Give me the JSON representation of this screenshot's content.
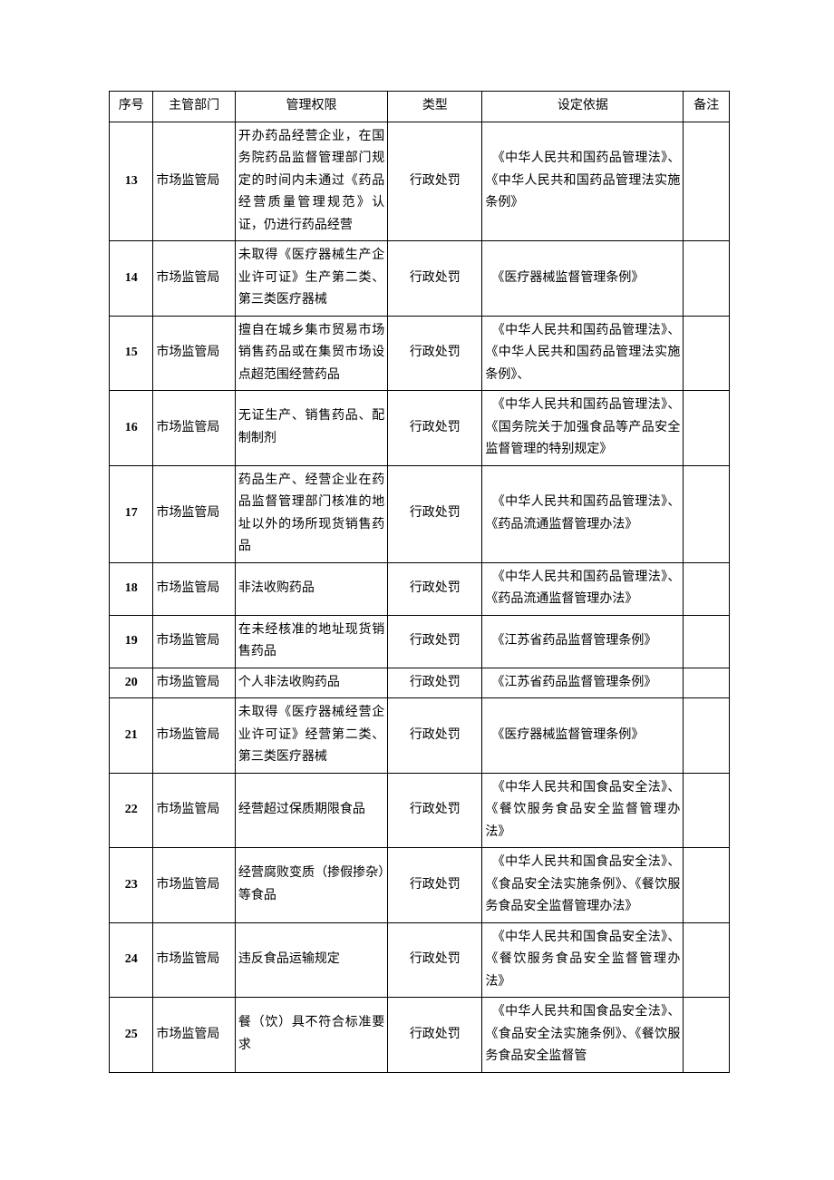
{
  "table": {
    "headers": {
      "seq": "序号",
      "dept": "主管部门",
      "auth": "管理权限",
      "type": "类型",
      "basis": "设定依据",
      "remark": "备注"
    },
    "rows": [
      {
        "seq": "13",
        "dept": "市场监管局",
        "auth": "开办药品经营企业，在国务院药品监督管理部门规定的时间内未通过《药品经营质量管理规范》认证，仍进行药品经营",
        "type": "行政处罚",
        "basis": "　《中华人民共和国药品管理法》、《中华人民共和国药品管理法实施条例》",
        "remark": ""
      },
      {
        "seq": "14",
        "dept": "市场监管局",
        "auth": "未取得《医疗器械生产企业许可证》生产第二类、第三类医疗器械",
        "type": "行政处罚",
        "basis": "　《医疗器械监督管理条例》",
        "remark": ""
      },
      {
        "seq": "15",
        "dept": "市场监管局",
        "auth": "擅自在城乡集市贸易市场销售药品或在集贸市场设点超范围经营药品",
        "type": "行政处罚",
        "basis": "　《中华人民共和国药品管理法》、《中华人民共和国药品管理法实施条例》、",
        "remark": ""
      },
      {
        "seq": "16",
        "dept": "市场监管局",
        "auth": "无证生产、销售药品、配制制剂",
        "type": "行政处罚",
        "basis": "　《中华人民共和国药品管理法》、《国务院关于加强食品等产品安全监督管理的特别规定》",
        "remark": ""
      },
      {
        "seq": "17",
        "dept": "市场监管局",
        "auth": "药品生产、经营企业在药品监督管理部门核准的地址以外的场所现货销售药品",
        "type": "行政处罚",
        "basis": "　《中华人民共和国药品管理法》、《药品流通监督管理办法》",
        "remark": ""
      },
      {
        "seq": "18",
        "dept": "市场监管局",
        "auth": "非法收购药品",
        "type": "行政处罚",
        "basis": "　《中华人民共和国药品管理法》、《药品流通监督管理办法》",
        "remark": ""
      },
      {
        "seq": "19",
        "dept": "市场监管局",
        "auth": "在未经核准的地址现货销售药品",
        "type": "行政处罚",
        "basis": "　《江苏省药品监督管理条例》",
        "remark": ""
      },
      {
        "seq": "20",
        "dept": "市场监管局",
        "auth": "个人非法收购药品",
        "type": "行政处罚",
        "basis": "　《江苏省药品监督管理条例》",
        "remark": ""
      },
      {
        "seq": "21",
        "dept": "市场监管局",
        "auth": "未取得《医疗器械经营企业许可证》经营第二类、第三类医疗器械",
        "type": "行政处罚",
        "basis": "　《医疗器械监督管理条例》",
        "remark": ""
      },
      {
        "seq": "22",
        "dept": "市场监管局",
        "auth": "经营超过保质期限食品",
        "type": "行政处罚",
        "basis": "　《中华人民共和国食品安全法》、《餐饮服务食品安全监督管理办法》",
        "remark": ""
      },
      {
        "seq": "23",
        "dept": "市场监管局",
        "auth": "经营腐败变质（掺假掺杂）等食品",
        "type": "行政处罚",
        "basis": "　《中华人民共和国食品安全法》、《食品安全法实施条例》、《餐饮服务食品安全监督管理办法》",
        "remark": ""
      },
      {
        "seq": "24",
        "dept": "市场监管局",
        "auth": "违反食品运输规定",
        "type": "行政处罚",
        "basis": "　《中华人民共和国食品安全法》、《餐饮服务食品安全监督管理办法》",
        "remark": ""
      },
      {
        "seq": "25",
        "dept": "市场监管局",
        "auth": "餐（饮）具不符合标准要求",
        "type": "行政处罚",
        "basis": "　《中华人民共和国食品安全法》、《食品安全法实施条例》、《餐饮服务食品安全监督管",
        "remark": ""
      }
    ]
  }
}
